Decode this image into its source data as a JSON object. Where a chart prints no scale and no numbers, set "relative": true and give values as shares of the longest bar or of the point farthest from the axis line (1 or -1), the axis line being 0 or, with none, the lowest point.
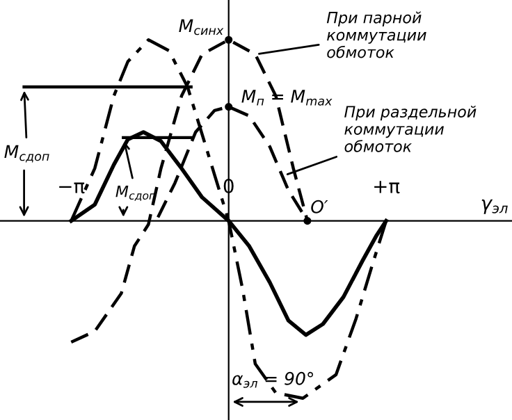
{
  "chart_data": {
    "type": "line",
    "relative": true,
    "xlabel": "γ$_{эл}$",
    "xlim": [
      -4.56,
      5.65
    ],
    "xticks": [
      {
        "value": -3.1416,
        "label": "−π"
      },
      0,
      {
        "value": 3.1416,
        "label": "+π"
      }
    ],
    "grid": false,
    "series": [
      {
        "color": "#000000",
        "line_style": "solid",
        "x": [
          -3.14,
          -2.67,
          -2.29,
          -2.01,
          -1.7,
          -1.35,
          -0.94,
          -0.53,
          0,
          0.41,
          0.82,
          1.19,
          1.54,
          1.88,
          2.29,
          2.67,
          2.95,
          3.14
        ],
        "values": [
          0,
          0.09,
          0.31,
          0.45,
          0.49,
          0.44,
          0.29,
          0.13,
          0,
          -0.14,
          -0.34,
          -0.55,
          -0.63,
          -0.57,
          -0.42,
          -0.22,
          -0.08,
          0
        ]
      },
      {
        "color": "#000000",
        "line_style": "dashdot",
        "x": [
          -3.14,
          -2.67,
          -2.29,
          -2.01,
          -1.6,
          -1.19,
          -0.82,
          -0.41,
          0,
          0.28,
          0.53,
          0.94,
          1.48,
          2.14,
          2.54,
          2.89,
          3.14
        ],
        "values": [
          0,
          0.29,
          0.69,
          0.88,
          1.0,
          0.94,
          0.74,
          0.37,
          0,
          -0.38,
          -0.79,
          -0.95,
          -0.98,
          -0.85,
          -0.54,
          -0.22,
          0
        ]
      },
      {
        "name": "При парной\nкоммутации\nобмоток",
        "color": "#000000",
        "line_style": "dashed",
        "x": [
          -3.14,
          -2.67,
          -2.14,
          -1.88,
          -1.6,
          -1.35,
          -0.94,
          -0.53,
          0,
          0.53,
          0.94,
          1.29,
          1.57
        ],
        "values": [
          -0.67,
          -0.61,
          -0.4,
          -0.14,
          -0.02,
          0.29,
          0.69,
          0.92,
          1.0,
          0.92,
          0.69,
          0.29,
          0
        ]
      },
      {
        "name": "При раздельной\nкоммутации\nобмоток",
        "color": "#000000",
        "line_style": "dashed",
        "x": [
          -1.41,
          -1.07,
          -0.66,
          -0.28,
          0,
          0.41,
          0.82,
          1.19,
          1.57
        ],
        "values": [
          0.02,
          0.21,
          0.49,
          0.61,
          0.63,
          0.58,
          0.41,
          0.17,
          0
        ]
      },
      {
        "color": "#000000",
        "line_style": "solid",
        "x": [
          -4.08,
          -0.75
        ],
        "values": [
          0.74,
          0.74
        ]
      },
      {
        "color": "#000000",
        "line_style": "solid",
        "x": [
          -2.1,
          -0.75
        ],
        "values": [
          0.46,
          0.46
        ]
      }
    ],
    "annotations": [
      {
        "text": "M$_{синх}$",
        "x": 0,
        "y": 1.0
      },
      {
        "text": "M$_{п}$ = M$_{max}$",
        "x": 0,
        "y": 0.63
      },
      {
        "text": "M$_{cдоп}$",
        "x": -4.08,
        "y": 0.74
      },
      {
        "text": "M$_{cдоп}$",
        "x": -2.1,
        "y": 0.46
      },
      {
        "text": "O′",
        "x": 1.57,
        "y": 0
      },
      {
        "text": "α$_{эл}$ = 90°",
        "x": 1.48,
        "y": -1.0
      }
    ]
  }
}
